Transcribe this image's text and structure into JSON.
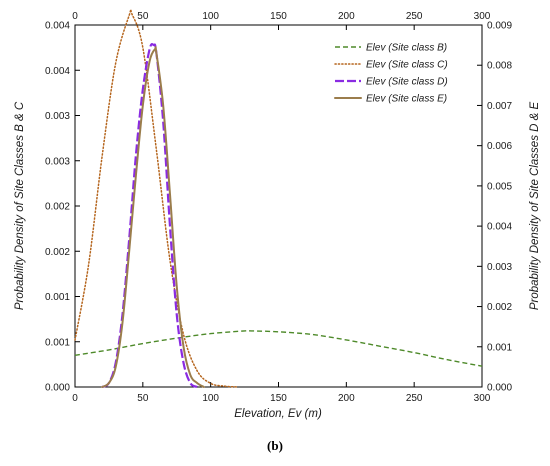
{
  "caption": "(b)",
  "chart_data": {
    "type": "line",
    "xlabel": "Elevation, Ev (m)",
    "ylabel_left": "Probability Density of Site Classes B & C",
    "ylabel_right": "Probability Density of Site Classes D & E",
    "xlim": [
      0,
      300
    ],
    "ylim_left": [
      0,
      0.004
    ],
    "ylim_right": [
      0,
      0.009
    ],
    "x_ticks": [
      "0",
      "50",
      "100",
      "150",
      "200",
      "250",
      "300"
    ],
    "y_ticks_left": [
      "0.000",
      "0.001",
      "0.001",
      "0.002",
      "0.002",
      "0.003",
      "0.003",
      "0.004",
      "0.004"
    ],
    "y_ticks_right": [
      "0.000",
      "0.001",
      "0.002",
      "0.003",
      "0.004",
      "0.005",
      "0.006",
      "0.007",
      "0.008",
      "0.009"
    ],
    "legend_position": "top-right",
    "grid": false,
    "series": [
      {
        "name": "Elev (Site class B)",
        "axis": "left",
        "color": "#4e8a2a",
        "dash": "dashed",
        "x": [
          0,
          25,
          50,
          75,
          100,
          125,
          130,
          150,
          175,
          200,
          225,
          250,
          275,
          300
        ],
        "y": [
          0.00035,
          0.00041,
          0.00048,
          0.00054,
          0.00059,
          0.00062,
          0.00062,
          0.00061,
          0.00058,
          0.00052,
          0.00045,
          0.00038,
          0.0003,
          0.00023
        ]
      },
      {
        "name": "Elev (Site class C)",
        "axis": "left",
        "color": "#b5651d",
        "dash": "dotted",
        "x": [
          0,
          10,
          20,
          30,
          40,
          42,
          50,
          60,
          70,
          80,
          90,
          100,
          110,
          120
        ],
        "y": [
          0.00052,
          0.00135,
          0.00255,
          0.00358,
          0.00411,
          0.00412,
          0.00375,
          0.00262,
          0.0014,
          0.00058,
          0.00018,
          4e-05,
          1e-05,
          0.0
        ]
      },
      {
        "name": "Elev (Site class D)",
        "axis": "right",
        "color": "#8a2be2",
        "dash": "longdash",
        "x": [
          20,
          25,
          30,
          35,
          40,
          45,
          50,
          55,
          58,
          60,
          65,
          70,
          75,
          80,
          85,
          90
        ],
        "y": [
          0.0,
          0.0001,
          0.0006,
          0.0018,
          0.0037,
          0.0058,
          0.0074,
          0.0084,
          0.0085,
          0.0083,
          0.0066,
          0.004,
          0.0018,
          0.0006,
          0.0001,
          0.0
        ]
      },
      {
        "name": "Elev (Site class E)",
        "axis": "right",
        "color": "#9b7d4c",
        "dash": "solid",
        "x": [
          20,
          25,
          30,
          35,
          40,
          45,
          50,
          55,
          59,
          60,
          65,
          70,
          75,
          80,
          85,
          90,
          95
        ],
        "y": [
          0.0,
          0.0001,
          0.0005,
          0.0016,
          0.0034,
          0.0053,
          0.007,
          0.0081,
          0.0084,
          0.0083,
          0.007,
          0.0048,
          0.0025,
          0.001,
          0.0003,
          0.0001,
          0.0
        ]
      }
    ]
  }
}
